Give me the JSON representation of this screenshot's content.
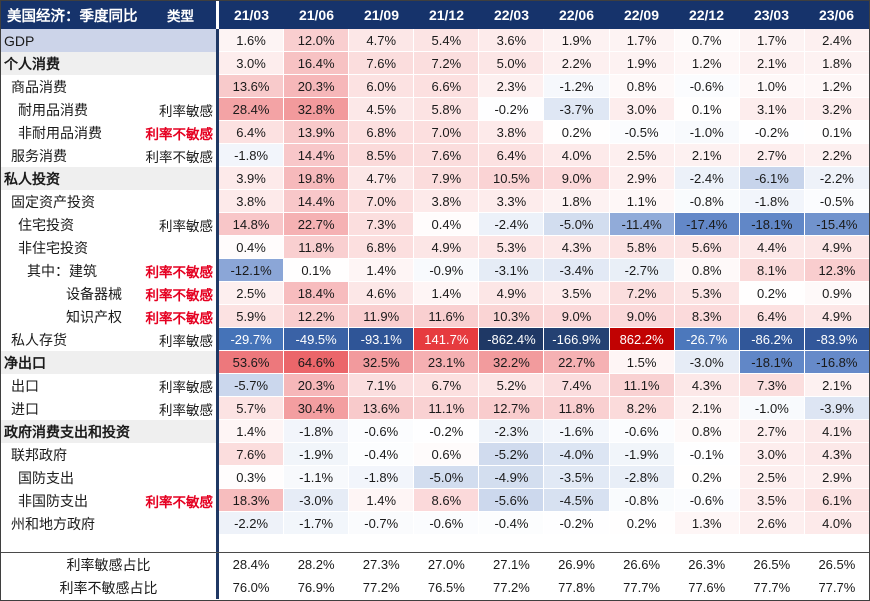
{
  "chart_data": {
    "type": "table",
    "title": "美国经济：季度同比",
    "type_column_header": "类型",
    "columns": [
      "21/03",
      "21/06",
      "21/09",
      "21/12",
      "22/03",
      "22/06",
      "22/09",
      "22/12",
      "23/03",
      "23/06"
    ],
    "rows": [
      {
        "label": "GDP",
        "type": "",
        "type_style": "",
        "row_style": "highlight",
        "indent": 0,
        "white_font": false,
        "values": [
          1.6,
          12.0,
          4.7,
          5.4,
          3.6,
          1.9,
          1.7,
          0.7,
          1.7,
          2.4
        ]
      },
      {
        "label": "个人消费",
        "type": "",
        "type_style": "",
        "row_style": "section",
        "indent": 0,
        "white_font": false,
        "values": [
          3.0,
          16.4,
          7.6,
          7.2,
          5.0,
          2.2,
          1.9,
          1.2,
          2.1,
          1.8
        ]
      },
      {
        "label": "商品消费",
        "type": "",
        "type_style": "",
        "row_style": "normal",
        "indent": 1,
        "white_font": false,
        "values": [
          13.6,
          20.3,
          6.0,
          6.6,
          2.3,
          -1.2,
          0.8,
          -0.6,
          1.0,
          1.2
        ]
      },
      {
        "label": "耐用品消费",
        "type": "利率敏感",
        "type_style": "plain",
        "row_style": "normal",
        "indent": 2,
        "white_font": false,
        "values": [
          28.4,
          32.8,
          4.5,
          5.8,
          -0.2,
          -3.7,
          3.0,
          0.1,
          3.1,
          3.2
        ]
      },
      {
        "label": "非耐用品消费",
        "type": "利率不敏感",
        "type_style": "red",
        "row_style": "normal",
        "indent": 2,
        "white_font": false,
        "values": [
          6.4,
          13.9,
          6.8,
          7.0,
          3.8,
          0.2,
          -0.5,
          -1.0,
          -0.2,
          0.1
        ]
      },
      {
        "label": "服务消费",
        "type": "利率不敏感",
        "type_style": "plain",
        "row_style": "normal",
        "indent": 1,
        "white_font": false,
        "values": [
          -1.8,
          14.4,
          8.5,
          7.6,
          6.4,
          4.0,
          2.5,
          2.1,
          2.7,
          2.2
        ]
      },
      {
        "label": "私人投资",
        "type": "",
        "type_style": "",
        "row_style": "section",
        "indent": 0,
        "white_font": false,
        "values": [
          3.9,
          19.8,
          4.7,
          7.9,
          10.5,
          9.0,
          2.9,
          -2.4,
          -6.1,
          -2.2
        ]
      },
      {
        "label": "固定资产投资",
        "type": "",
        "type_style": "",
        "row_style": "normal",
        "indent": 1,
        "white_font": false,
        "values": [
          3.8,
          14.4,
          7.0,
          3.8,
          3.3,
          1.8,
          1.1,
          -0.8,
          -1.8,
          -0.5
        ]
      },
      {
        "label": "住宅投资",
        "type": "利率敏感",
        "type_style": "plain",
        "row_style": "normal",
        "indent": 2,
        "white_font": false,
        "values": [
          14.8,
          22.7,
          7.3,
          0.4,
          -2.4,
          -5.0,
          -11.4,
          -17.4,
          -18.1,
          -15.4
        ]
      },
      {
        "label": "非住宅投资",
        "type": "",
        "type_style": "",
        "row_style": "normal",
        "indent": 2,
        "white_font": false,
        "values": [
          0.4,
          11.8,
          6.8,
          4.9,
          5.3,
          4.3,
          5.8,
          5.6,
          4.4,
          4.9
        ]
      },
      {
        "label": "其中：建筑",
        "type": "利率不敏感",
        "type_style": "red",
        "row_style": "normal",
        "indent": 3,
        "white_font": false,
        "values": [
          -12.1,
          0.1,
          1.4,
          -0.9,
          -3.1,
          -3.4,
          -2.7,
          0.8,
          8.1,
          12.3
        ]
      },
      {
        "label": "设备器械",
        "type": "利率不敏感",
        "type_style": "red",
        "row_style": "normal",
        "indent": 4,
        "white_font": false,
        "values": [
          2.5,
          18.4,
          4.6,
          1.4,
          4.9,
          3.5,
          7.2,
          5.3,
          0.2,
          0.9
        ]
      },
      {
        "label": "知识产权",
        "type": "利率不敏感",
        "type_style": "red",
        "row_style": "normal",
        "indent": 4,
        "white_font": false,
        "values": [
          5.9,
          12.2,
          11.9,
          11.6,
          10.3,
          9.0,
          9.0,
          8.3,
          6.4,
          4.9
        ]
      },
      {
        "label": "私人存货",
        "type": "利率敏感",
        "type_style": "plain",
        "row_style": "normal",
        "indent": 1,
        "white_font": true,
        "values": [
          -29.7,
          -49.5,
          -93.1,
          141.7,
          -862.4,
          -166.9,
          862.2,
          -26.7,
          -86.2,
          -83.9
        ]
      },
      {
        "label": "净出口",
        "type": "",
        "type_style": "",
        "row_style": "section",
        "indent": 0,
        "white_font": false,
        "values": [
          53.6,
          64.6,
          32.5,
          23.1,
          32.2,
          22.7,
          1.5,
          -3.0,
          -18.1,
          -16.8
        ]
      },
      {
        "label": "出口",
        "type": "利率敏感",
        "type_style": "plain",
        "row_style": "normal",
        "indent": 1,
        "white_font": false,
        "values": [
          -5.7,
          20.3,
          7.1,
          6.7,
          5.2,
          7.4,
          11.1,
          4.3,
          7.3,
          2.1
        ]
      },
      {
        "label": "进口",
        "type": "利率敏感",
        "type_style": "plain",
        "row_style": "normal",
        "indent": 1,
        "white_font": false,
        "values": [
          5.7,
          30.4,
          13.6,
          11.1,
          12.7,
          11.8,
          8.2,
          2.1,
          -1.0,
          -3.9
        ]
      },
      {
        "label": "政府消费支出和投资",
        "type": "",
        "type_style": "",
        "row_style": "section",
        "indent": 0,
        "white_font": false,
        "values": [
          1.4,
          -1.8,
          -0.6,
          -0.2,
          -2.3,
          -1.6,
          -0.6,
          0.8,
          2.7,
          4.1
        ]
      },
      {
        "label": "联邦政府",
        "type": "",
        "type_style": "",
        "row_style": "normal",
        "indent": 1,
        "white_font": false,
        "values": [
          7.6,
          -1.9,
          -0.4,
          0.6,
          -5.2,
          -4.0,
          -1.9,
          -0.1,
          3.0,
          4.3
        ]
      },
      {
        "label": "国防支出",
        "type": "",
        "type_style": "",
        "row_style": "normal",
        "indent": 2,
        "white_font": false,
        "values": [
          0.3,
          -1.1,
          -1.8,
          -5.0,
          -4.9,
          -3.5,
          -2.8,
          0.2,
          2.5,
          2.9
        ]
      },
      {
        "label": "非国防支出",
        "type": "利率不敏感",
        "type_style": "red",
        "row_style": "normal",
        "indent": 2,
        "white_font": false,
        "values": [
          18.3,
          -3.0,
          1.4,
          8.6,
          -5.6,
          -4.5,
          -0.8,
          -0.6,
          3.5,
          6.1
        ]
      },
      {
        "label": "州和地方政府",
        "type": "",
        "type_style": "",
        "row_style": "normal",
        "indent": 1,
        "white_font": false,
        "values": [
          -2.2,
          -1.7,
          -0.7,
          -0.6,
          -0.4,
          -0.2,
          0.2,
          1.3,
          2.6,
          4.0
        ]
      }
    ],
    "summary_rows": [
      {
        "label": "利率敏感占比",
        "values": [
          28.4,
          28.2,
          27.3,
          27.0,
          27.1,
          26.9,
          26.6,
          26.3,
          26.5,
          26.5
        ]
      },
      {
        "label": "利率不敏感占比",
        "values": [
          76.0,
          76.9,
          77.2,
          76.5,
          77.2,
          77.8,
          77.7,
          77.6,
          77.7,
          77.7
        ]
      }
    ],
    "value_format": "percent_1dp",
    "colors": {
      "header_bg": "#16336B",
      "divider": "#1F3864",
      "highlight_row_bg": "#CCD4E9",
      "section_row_bg": "#EFEFEF",
      "type_red_text": "#E50021",
      "max_positive": "#C00000",
      "max_negative": "#1F3864"
    },
    "legend_note": "red = positive YoY, blue = negative YoY (heatmap shading)"
  }
}
